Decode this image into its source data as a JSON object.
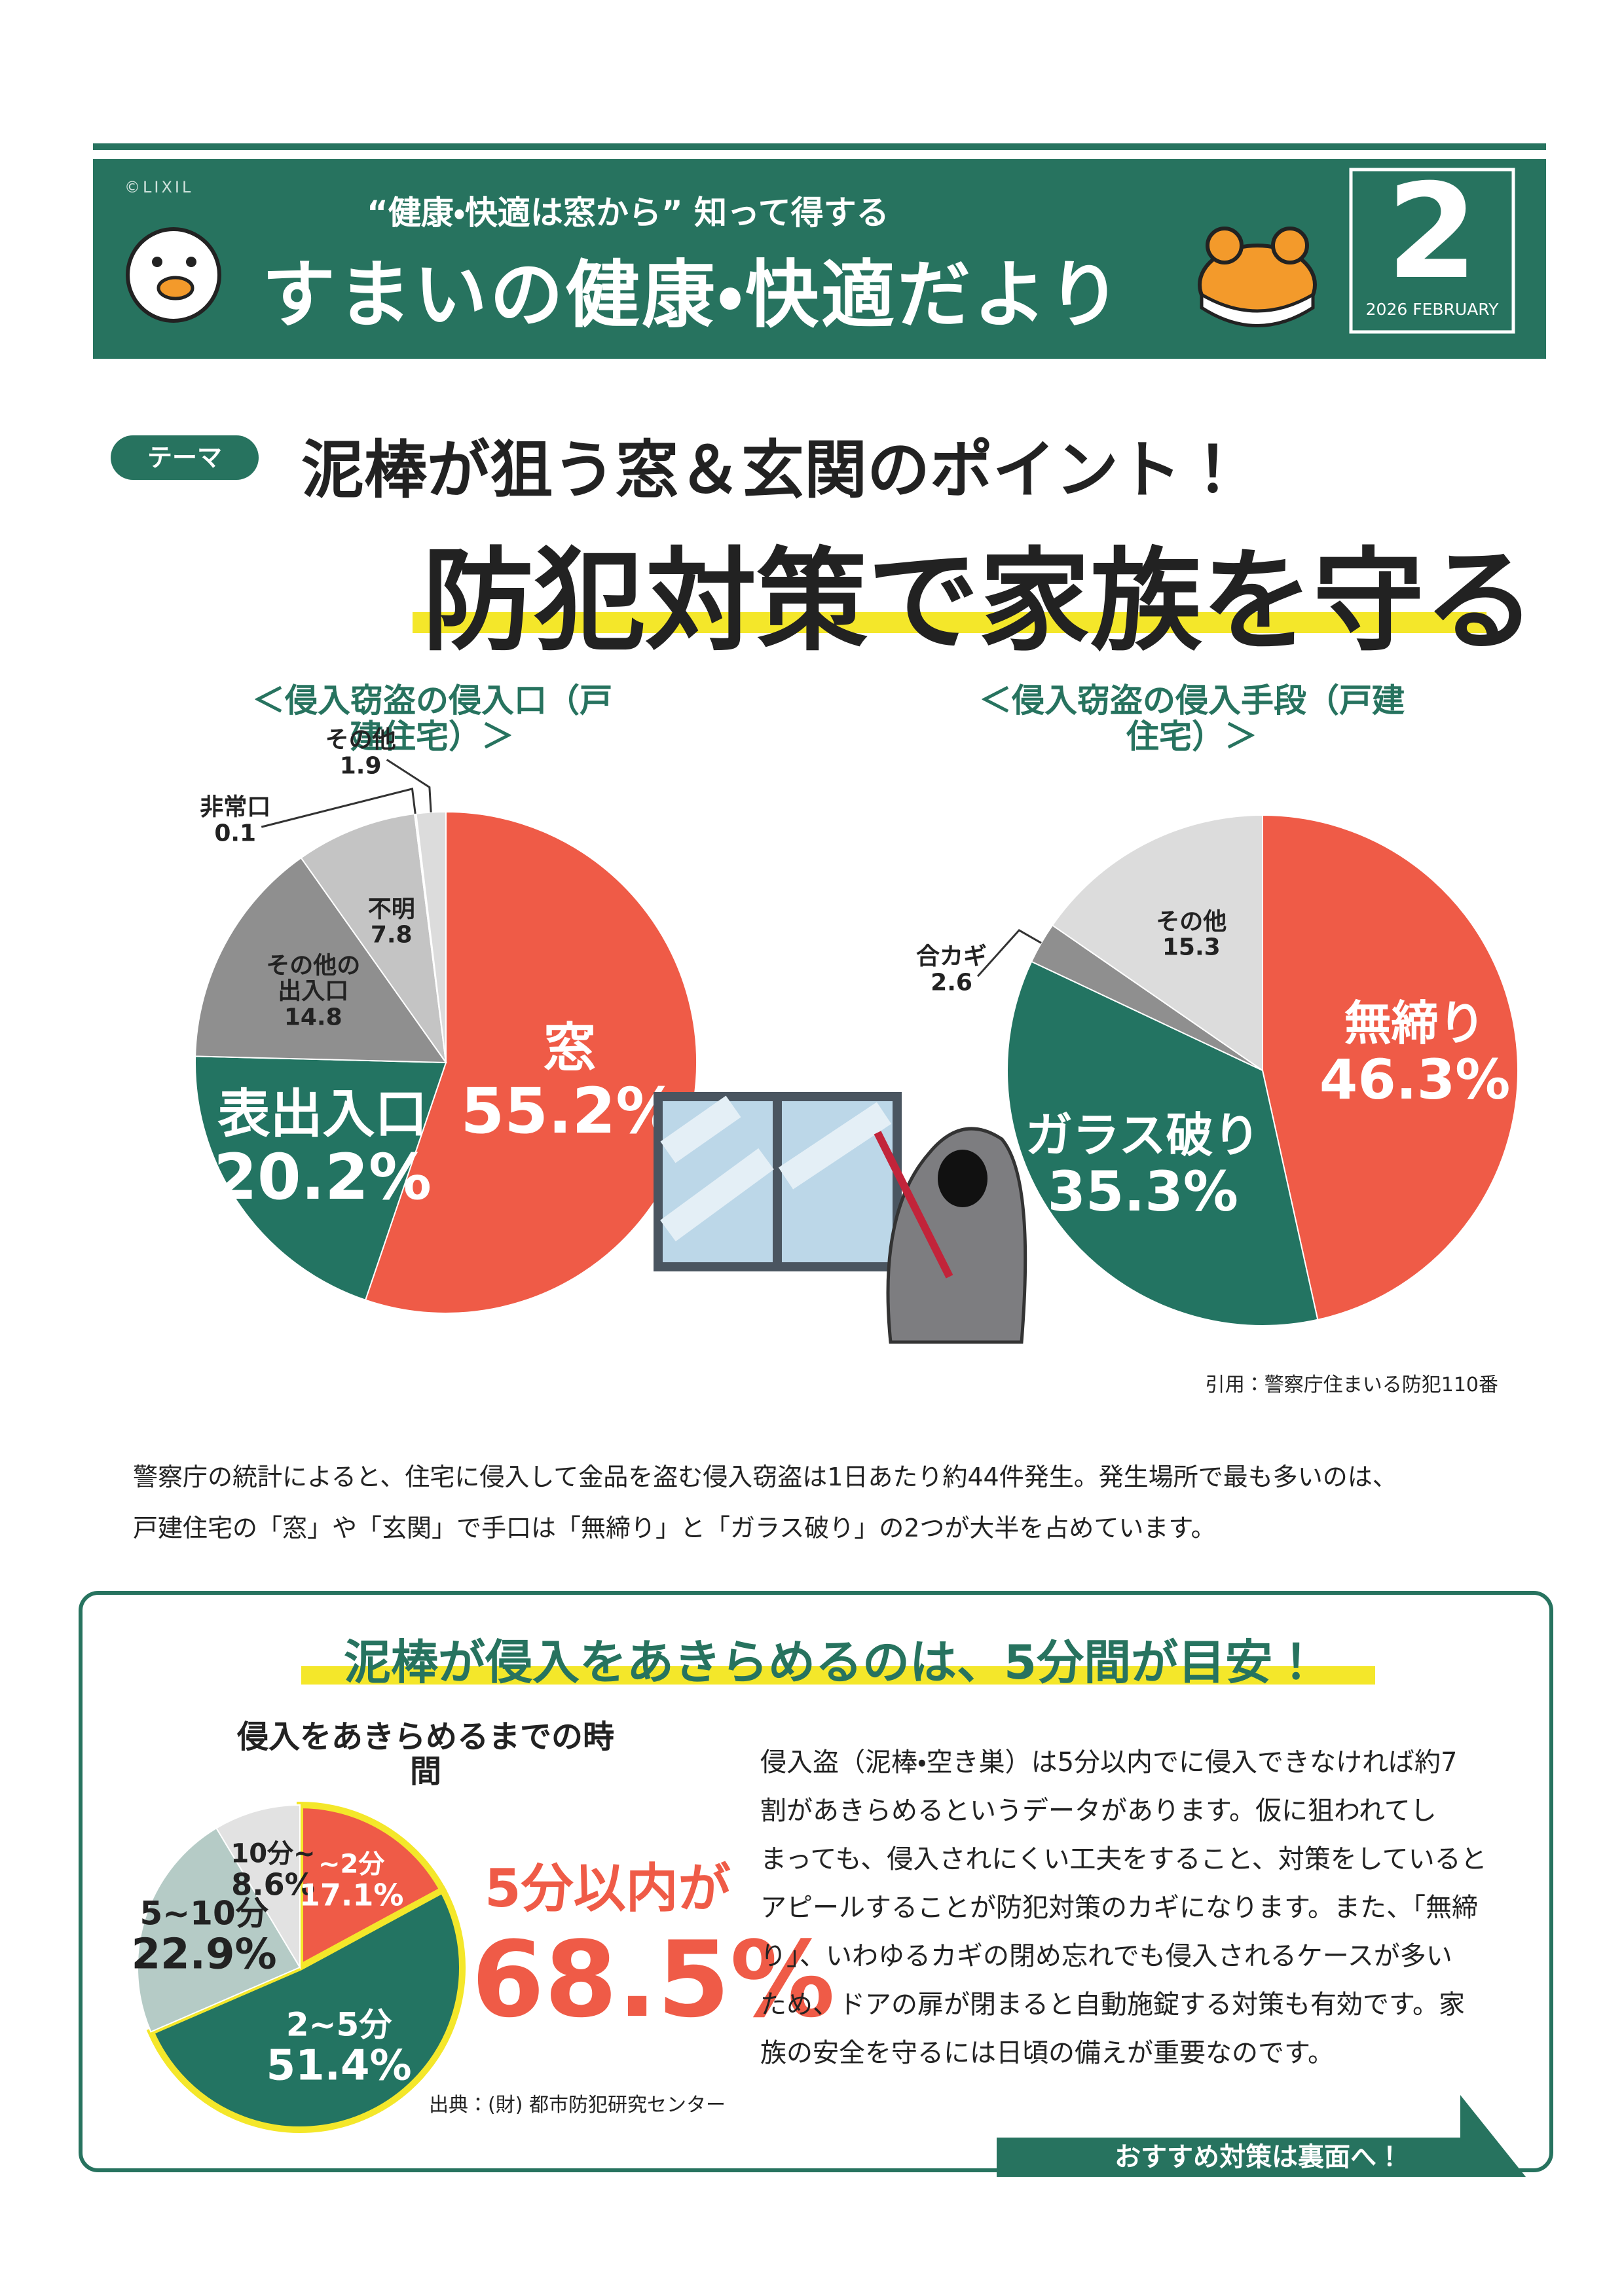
{
  "header": {
    "copyright": "©LIXIL",
    "tagline": "“健康・快適は窓から” 知って得する",
    "title": "すまいの健康・快適だより",
    "month": "2",
    "date": "2026 FEBRUARY"
  },
  "theme": {
    "tag": "テーマ",
    "subtitle": "泥棒が狙う窓＆玄関のポイント！",
    "title": "防犯対策で家族を守る"
  },
  "charts": [
    {
      "type": "pie",
      "title": "＜侵入窃盗の侵入口（戸建住宅）＞",
      "categories": [
        "窓",
        "表出入口",
        "その他の\n出入口",
        "不明",
        "非常口",
        "その他"
      ],
      "values": [
        55.2,
        20.2,
        14.8,
        7.8,
        0.1,
        1.9
      ],
      "value_labels": [
        "55.2%",
        "20.2%",
        "14.8",
        "7.8",
        "0.1",
        "1.9"
      ],
      "colors": [
        "#ef5b47",
        "#237462",
        "#8f8f8f",
        "#c4c4c4",
        "#ececec",
        "#dcdcdc"
      ]
    },
    {
      "type": "pie",
      "title": "＜侵入窃盗の侵入手段（戸建住宅）＞",
      "categories": [
        "無締り",
        "ガラス破り",
        "合カギ",
        "その他"
      ],
      "values": [
        46.3,
        35.3,
        2.6,
        15.3
      ],
      "value_labels": [
        "46.3%",
        "35.3%",
        "2.6",
        "15.3"
      ],
      "colors": [
        "#ef5b47",
        "#237462",
        "#8f8f8f",
        "#dcdcdc"
      ]
    }
  ],
  "citation": "引用：警察庁住まいる防犯110番",
  "body": [
    "警察庁の統計によると、住宅に侵入して金品を盗む侵入窃盗は1日あたり約44件発生。発生場所で最も多いのは、",
    "戸建住宅の「窓」や「玄関」で手口は「無締り」と「ガラス破り」の2つが大半を占めています。"
  ],
  "box": {
    "heading": "泥棒が侵入をあきらめるのは、5分間が目安！",
    "chart": {
      "type": "pie",
      "title": "侵入をあきらめるまでの時間",
      "categories": [
        "~2分",
        "2~5分",
        "5~10分",
        "10分~"
      ],
      "values": [
        17.1,
        51.4,
        22.9,
        8.6
      ],
      "value_labels": [
        "17.1%",
        "51.4%",
        "22.9%",
        "8.6%"
      ],
      "colors": [
        "#ef5b47",
        "#237462",
        "#b5cbc6",
        "#e2e2e2"
      ]
    },
    "highlight_label": "5分以内が",
    "highlight_value": "68.5%",
    "source": "出典：(財) 都市防犯研究センター",
    "text": [
      "侵入盗（泥棒・空き巣）は5分以内でに侵入できなければ約7",
      "割があきらめるというデータがあります。仮に狙われてし",
      "まっても、侵入されにくい工夫をすること、対策をしていると",
      "アピールすることが防犯対策のカギになります。また、「無締",
      "り」、いわゆるカギの閉め忘れでも侵入されるケースが多い",
      "ため、ドアの扉が閉まると自動施錠する対策も有効です。家",
      "族の安全を守るには日頃の備えが重要なのです。"
    ],
    "button": "おすすめ対策は裏面へ！"
  }
}
